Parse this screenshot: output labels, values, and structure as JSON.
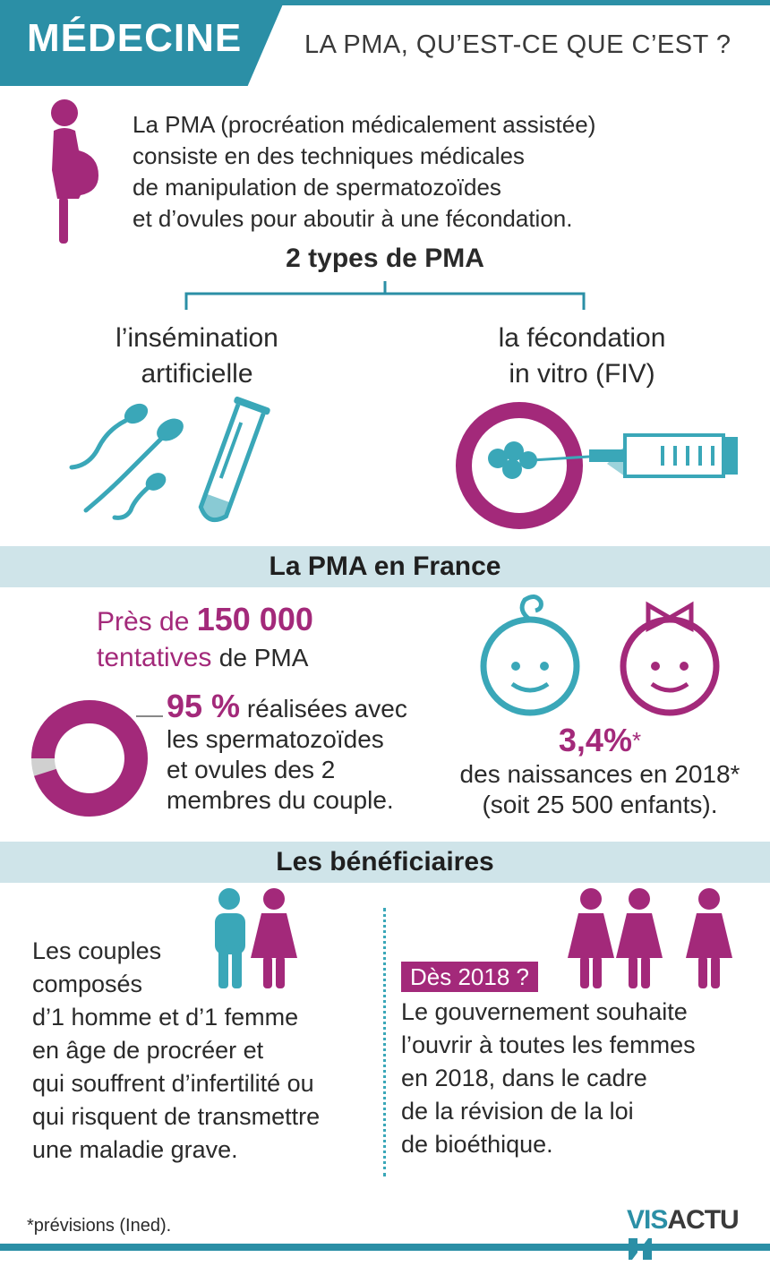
{
  "header": {
    "category": "MÉDECINE",
    "title": "LA PMA, QU’EST-CE QUE C’EST ?"
  },
  "intro": {
    "line1": "La PMA (procréation médicalement assistée)",
    "line2": "consiste en des techniques médicales",
    "line3": "de manipulation  de spermatozoïdes",
    "line4": "et d’ovules pour aboutir à une fécondation.",
    "icon": "pregnant-woman-icon"
  },
  "types": {
    "title": "2 types de PMA",
    "left": {
      "line1": "l’insémination",
      "line2": "artificielle"
    },
    "right": {
      "line1": "la fécondation",
      "line2": "in vitro (FIV)"
    }
  },
  "france": {
    "heading": "La PMA en France",
    "pres_de": "Près de",
    "attempts_value": "150 000",
    "attempts_word": "tentatives",
    "attempts_suffix": "de PMA",
    "share_value": "95 %",
    "share_fraction": 0.95,
    "share_text1": "réalisées avec",
    "share_text2": "les spermatozoïdes",
    "share_text3": "et ovules des 2",
    "share_text4": "membres du couple.",
    "births_value": "3,4%",
    "births_star": "*",
    "births_text1": "des naissances en 2018*",
    "births_text2": "(soit 25 500 enfants)."
  },
  "beneficiaries": {
    "heading": "Les bénéficiaires",
    "left_lines": [
      "Les couples",
      "composés",
      "d’1 homme et d’1 femme",
      "en  âge de procréer et",
      "qui souffrent d’infertilité ou",
      "qui risquent de transmettre",
      "une maladie grave."
    ],
    "badge": "Dès 2018 ?",
    "right_lines": [
      "Le gouvernement souhaite",
      "l’ouvrir à toutes les femmes",
      "en 2018, dans le cadre",
      "de la révision de la loi",
      "de bioéthique."
    ]
  },
  "footer": {
    "footnote": "*prévisions (Ined).",
    "logo_part1": "VIS",
    "logo_part2": "ACTU"
  },
  "colors": {
    "teal": "#3aa7b8",
    "plum": "#a3297a",
    "band": "#cfe4e9",
    "header": "#2b8fa6"
  }
}
